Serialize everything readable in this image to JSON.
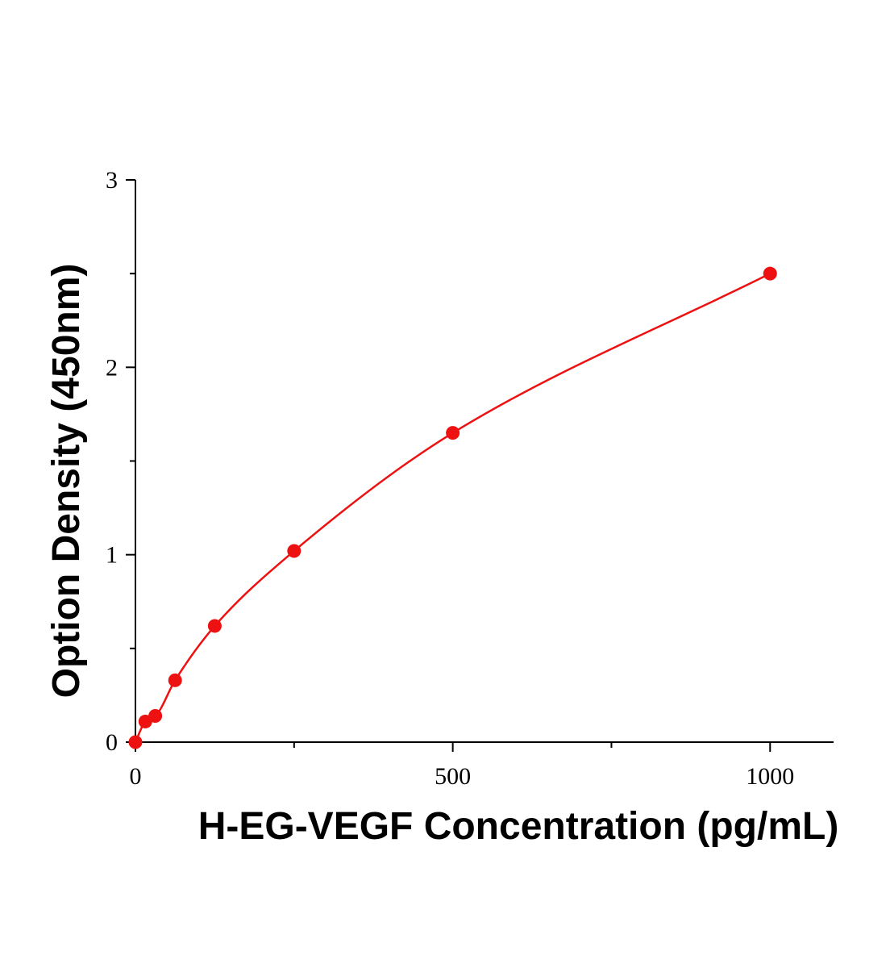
{
  "chart_data": {
    "type": "scatter",
    "title": "",
    "xlabel": "H-EG-VEGF Concentration (pg/mL)",
    "ylabel": "Option Density (450nm)",
    "xlim": [
      0,
      1100
    ],
    "ylim": [
      0,
      3
    ],
    "x_ticks": [
      0,
      500,
      1000
    ],
    "x_tick_labels": [
      "0",
      "500",
      "1000"
    ],
    "y_ticks": [
      0,
      1,
      2,
      3
    ],
    "y_tick_labels": [
      "0",
      "1",
      "2",
      "3"
    ],
    "x_minor_ticks": [
      250,
      750
    ],
    "y_minor_ticks": [
      0.5,
      1.5,
      2.5
    ],
    "grid": false,
    "legend": "none",
    "color": "#ee1111",
    "series": [
      {
        "x": [
          0,
          15.6,
          31.25,
          62.5,
          125,
          250,
          500,
          1000
        ],
        "y": [
          0.0,
          0.11,
          0.14,
          0.33,
          0.62,
          1.02,
          1.65,
          2.5
        ],
        "fit": "smooth curve"
      }
    ]
  }
}
